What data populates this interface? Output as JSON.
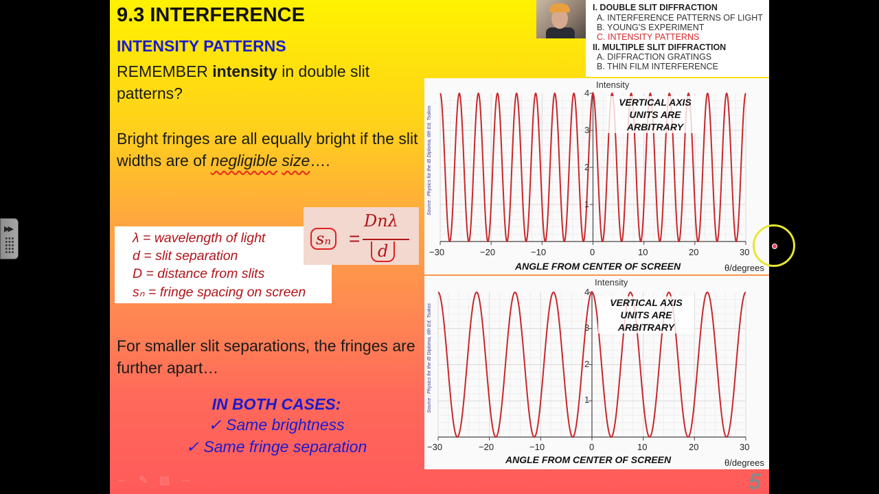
{
  "left_toolbar": {
    "forward_icon": "▶▶"
  },
  "slide": {
    "title": "9.3 INTERFERENCE",
    "subtitle": "INTENSITY PATTERNS",
    "remember": {
      "pre": "REMEMBER ",
      "bold": "intensity",
      "post": " in double slit patterns?"
    },
    "bright": {
      "pre": "Bright fringes are all equally bright if the slit widths are of ",
      "italic1": "negligible",
      "sp": " ",
      "italic2": "size",
      "post": "…."
    },
    "definitions": [
      "λ = wavelength of light",
      "d = slit separation",
      "D = distance from slits",
      "sₙ = fringe spacing on screen"
    ],
    "formula": {
      "lhs": "sₙ",
      "eq": "=",
      "numerator": "Dnλ",
      "denominator": "d"
    },
    "smaller": "For smaller slit separations, the fringes are further apart…",
    "both_cases": {
      "heading": "IN BOTH CASES:",
      "items": [
        "✓  Same brightness",
        "✓  Same fringe separation"
      ]
    },
    "nav_icons": [
      "←",
      "✎",
      "▤",
      "→"
    ],
    "page_number": "5"
  },
  "outline": {
    "items": [
      {
        "label": "I. DOUBLE SLIT DIFFRACTION",
        "level": 1
      },
      {
        "label": "A. INTERFERENCE PATTERNS OF LIGHT",
        "level": 2
      },
      {
        "label": "B. YOUNG'S EXPERIMENT",
        "level": 2
      },
      {
        "label": "C. INTENSITY PATTERNS",
        "level": 2,
        "active": true
      },
      {
        "label": "II. MULTIPLE SLIT DIFFRACTION",
        "level": 1
      },
      {
        "label": "A.  DIFFRACTION GRATINGS",
        "level": 2
      },
      {
        "label": "B.  THIN FILM INTERFERENCE",
        "level": 2
      }
    ]
  },
  "colors": {
    "curve": "#c8262a",
    "accent_blue": "#1a1ad0",
    "def_red": "#b0141a",
    "outline_active": "#d4262a"
  },
  "chart_data": [
    {
      "type": "line",
      "title": "",
      "ylabel": "Intensity",
      "xlabel": "θ/degrees",
      "axis_title": "ANGLE FROM CENTER OF SCREEN",
      "annotation": "VERTICAL AXIS UNITS ARE ARBITRARY",
      "source": "Source : Physics for the IB Diploma, 6th Ed, Tsokos",
      "xlim": [
        -30,
        30
      ],
      "ylim": [
        0,
        4
      ],
      "xticks": [
        -30,
        -20,
        -10,
        0,
        10,
        20,
        30
      ],
      "yticks": [
        1,
        2,
        3,
        4
      ],
      "grid": true,
      "function": "I = 4cos²(πθ/3.75)",
      "fringe_spacing_deg": 3.75,
      "peak_x": [
        -30,
        -26.25,
        -22.5,
        -18.75,
        -15,
        -11.25,
        -7.5,
        -3.75,
        0,
        3.75,
        7.5,
        11.25,
        15,
        18.75,
        22.5,
        26.25,
        30
      ],
      "peak_y": 4,
      "min_y": 0
    },
    {
      "type": "line",
      "title": "",
      "ylabel": "Intensity",
      "xlabel": "θ/degrees",
      "axis_title": "ANGLE FROM CENTER OF SCREEN",
      "annotation": "VERTICAL AXIS UNITS ARE ARBITRARY",
      "source": "Source : Physics for the IB Diploma, 6th Ed, Tsokos",
      "xlim": [
        -30,
        30
      ],
      "ylim": [
        0,
        4
      ],
      "xticks": [
        -30,
        -20,
        -10,
        0,
        10,
        20,
        30
      ],
      "yticks": [
        1,
        2,
        3,
        4
      ],
      "grid": true,
      "function": "I = 4cos²(πθ/7.5)",
      "fringe_spacing_deg": 7.5,
      "peak_x": [
        -30,
        -22.5,
        -15,
        -7.5,
        0,
        7.5,
        15,
        22.5,
        30
      ],
      "peak_y": 4,
      "min_y": 0
    }
  ],
  "chart_labels": {
    "intensity": "Intensity",
    "x_unit": "θ/degrees",
    "axis_title": "ANGLE FROM CENTER OF SCREEN",
    "note": "VERTICAL AXIS UNITS ARE ARBITRARY",
    "source": "Source : Physics for the IB Diploma, 6th Ed, Tsokos",
    "xtick_labels": [
      "−30",
      "−20",
      "−10",
      "0",
      "10",
      "20",
      "30"
    ],
    "ytick_labels": [
      "1",
      "2",
      "3",
      "4"
    ]
  }
}
